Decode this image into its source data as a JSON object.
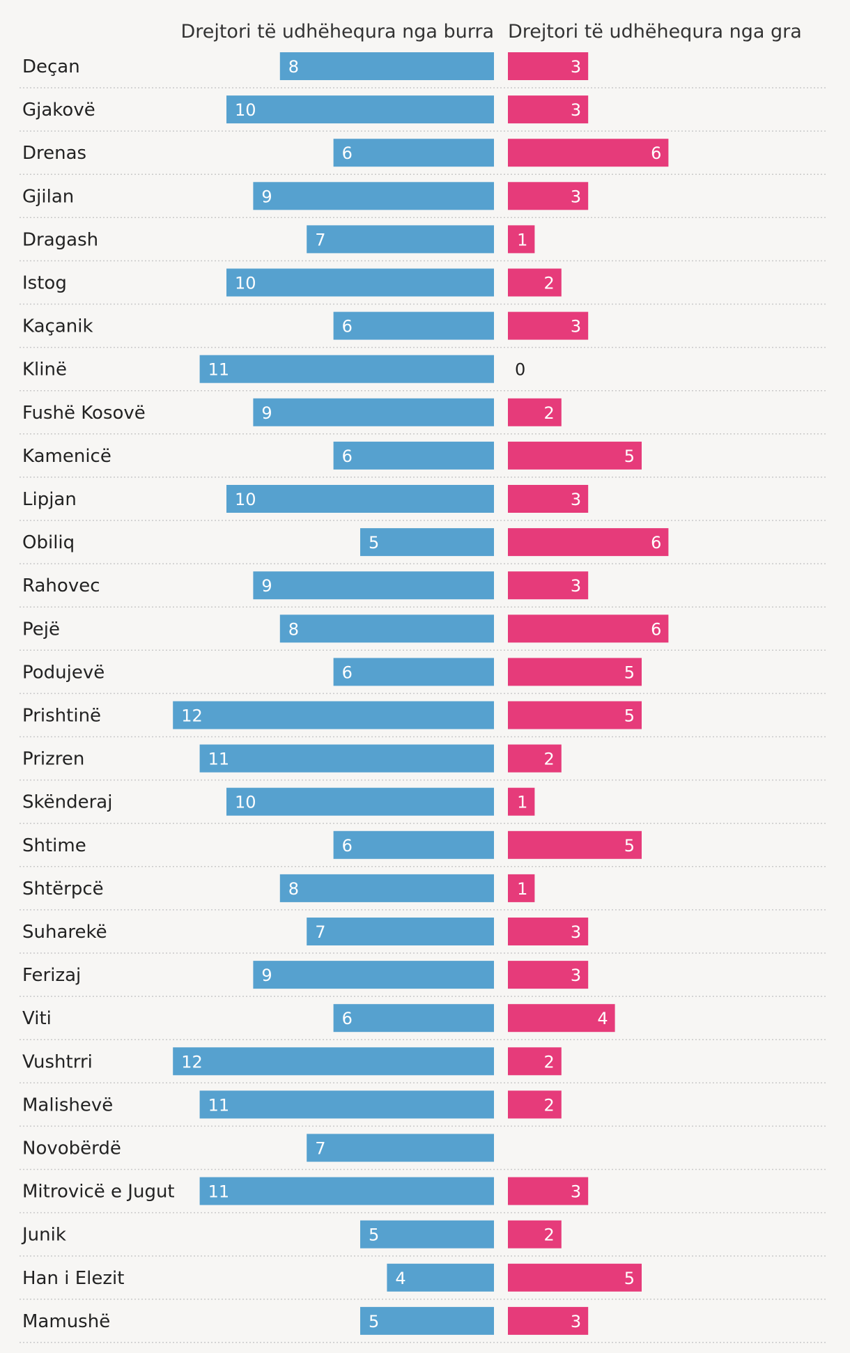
{
  "chart_data": {
    "type": "bar",
    "series": [
      {
        "name": "Drejtori të udhëhequra nga burra",
        "color": "#56a1cf",
        "values": [
          8,
          10,
          6,
          9,
          7,
          10,
          6,
          11,
          9,
          6,
          10,
          5,
          9,
          8,
          6,
          12,
          11,
          10,
          6,
          8,
          7,
          9,
          6,
          12,
          11,
          7,
          11,
          5,
          4,
          5
        ]
      },
      {
        "name": "Drejtori të udhëhequra nga gra",
        "color": "#e63b7a",
        "values": [
          3,
          3,
          6,
          3,
          1,
          2,
          3,
          0,
          2,
          5,
          3,
          6,
          3,
          6,
          5,
          5,
          2,
          1,
          5,
          1,
          3,
          3,
          4,
          2,
          2,
          null,
          3,
          2,
          5,
          3
        ]
      }
    ],
    "categories": [
      "Deçan",
      "Gjakovë",
      "Drenas",
      "Gjilan",
      "Dragash",
      "Istog",
      "Kaçanik",
      "Klinë",
      "Fushë Kosovë",
      "Kamenicë",
      "Lipjan",
      "Obiliq",
      "Rahovec",
      "Pejë",
      "Podujevë",
      "Prishtinë",
      "Prizren",
      "Skënderaj",
      "Shtime",
      "Shtërpcë",
      "Suharekë",
      "Ferizaj",
      "Viti",
      "Vushtrri",
      "Malishevë",
      "Novobërdë",
      "Mitrovicë e Jugut",
      "Junik",
      "Han i Elezit",
      "Mamushë"
    ]
  }
}
